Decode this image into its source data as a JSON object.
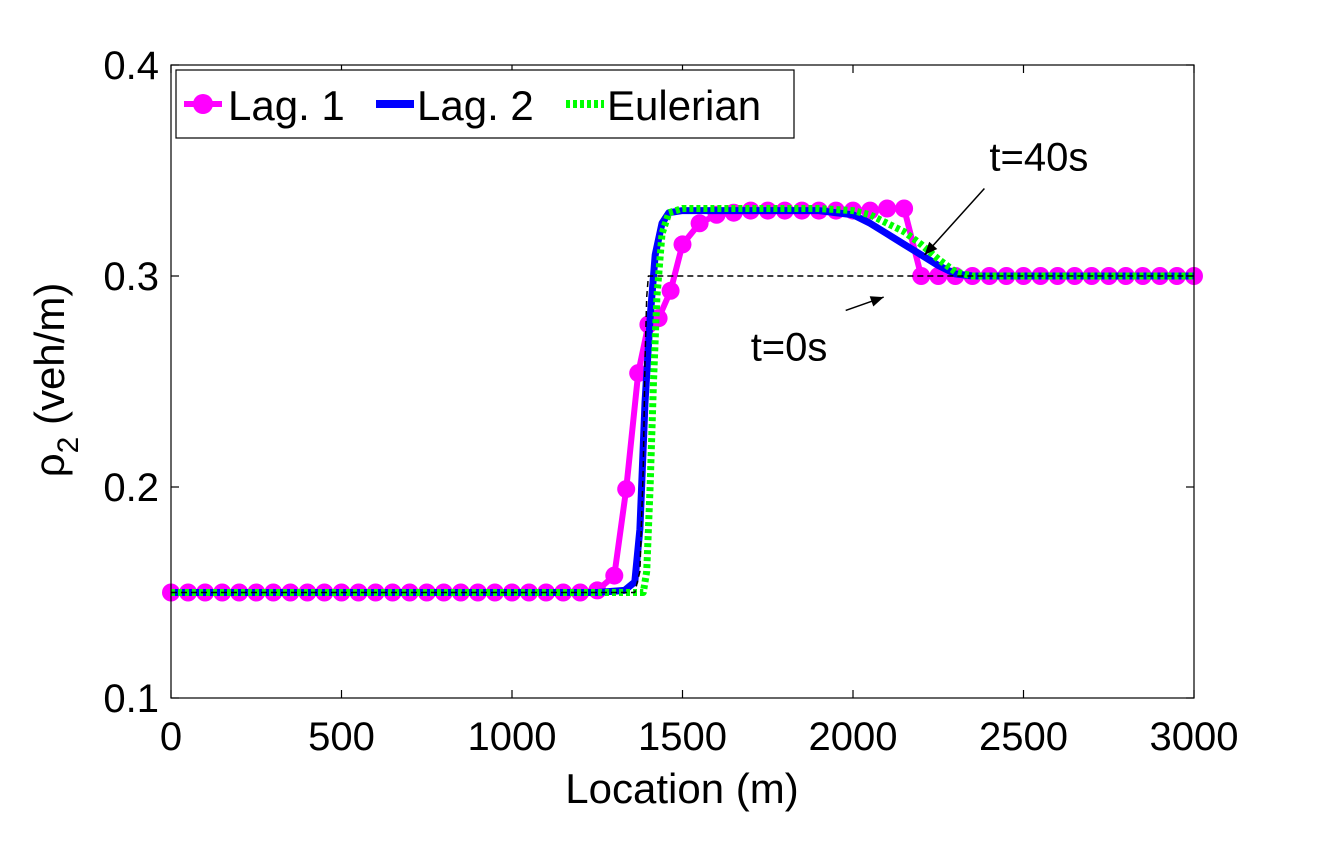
{
  "chart_data": {
    "type": "line",
    "title": "",
    "xlabel": "Location (m)",
    "ylabel": "ρ",
    "ylabel_sub": "2",
    "ylabel_unit": " (veh/m)",
    "xlim": [
      0,
      3000
    ],
    "ylim": [
      0.1,
      0.4
    ],
    "xticks": [
      0,
      500,
      1000,
      1500,
      2000,
      2500,
      3000
    ],
    "xtick_labels": [
      "0",
      "500",
      "1000",
      "1500",
      "2000",
      "2500",
      "3000"
    ],
    "yticks": [
      0.1,
      0.2,
      0.3,
      0.4
    ],
    "ytick_labels": [
      "0.1",
      "0.2",
      "0.3",
      "0.4"
    ],
    "grid": false,
    "legend_position": "top-left",
    "series": [
      {
        "name": "Lag. 1",
        "color": "#ff00ff",
        "style": "solid-circles",
        "x": [
          0,
          50,
          100,
          150,
          200,
          250,
          300,
          350,
          400,
          450,
          500,
          550,
          600,
          650,
          700,
          750,
          800,
          850,
          900,
          950,
          1000,
          1050,
          1100,
          1150,
          1200,
          1250,
          1300,
          1335,
          1370,
          1400,
          1430,
          1465,
          1500,
          1550,
          1600,
          1650,
          1700,
          1750,
          1800,
          1850,
          1900,
          1950,
          2000,
          2050,
          2100,
          2150,
          2200,
          2250,
          2300,
          2350,
          2400,
          2450,
          2500,
          2550,
          2600,
          2650,
          2700,
          2750,
          2800,
          2850,
          2900,
          2950,
          3000
        ],
        "y": [
          0.15,
          0.15,
          0.15,
          0.15,
          0.15,
          0.15,
          0.15,
          0.15,
          0.15,
          0.15,
          0.15,
          0.15,
          0.15,
          0.15,
          0.15,
          0.15,
          0.15,
          0.15,
          0.15,
          0.15,
          0.15,
          0.15,
          0.15,
          0.15,
          0.15,
          0.151,
          0.158,
          0.199,
          0.254,
          0.277,
          0.28,
          0.293,
          0.315,
          0.325,
          0.329,
          0.33,
          0.331,
          0.331,
          0.331,
          0.331,
          0.331,
          0.331,
          0.331,
          0.331,
          0.332,
          0.332,
          0.3,
          0.3,
          0.3,
          0.3,
          0.3,
          0.3,
          0.3,
          0.3,
          0.3,
          0.3,
          0.3,
          0.3,
          0.3,
          0.3,
          0.3,
          0.3,
          0.3
        ]
      },
      {
        "name": "Lag. 2",
        "color": "#0000ff",
        "style": "solid",
        "x": [
          0,
          1250,
          1330,
          1360,
          1375,
          1390,
          1405,
          1420,
          1440,
          1460,
          1500,
          1600,
          1900,
          2000,
          2050,
          2100,
          2150,
          2200,
          2250,
          2300,
          2350,
          2400,
          3000
        ],
        "y": [
          0.15,
          0.15,
          0.151,
          0.155,
          0.18,
          0.24,
          0.28,
          0.31,
          0.325,
          0.33,
          0.331,
          0.331,
          0.331,
          0.329,
          0.325,
          0.32,
          0.315,
          0.31,
          0.305,
          0.301,
          0.3,
          0.3,
          0.3
        ]
      },
      {
        "name": "Eulerian",
        "color": "#00ff00",
        "style": "dotted",
        "x": [
          0,
          1350,
          1385,
          1395,
          1405,
          1415,
          1425,
          1440,
          1460,
          1500,
          1600,
          1900,
          2000,
          2050,
          2100,
          2150,
          2200,
          2250,
          2300,
          2350,
          2400,
          3000
        ],
        "y": [
          0.15,
          0.15,
          0.15,
          0.16,
          0.2,
          0.25,
          0.29,
          0.32,
          0.33,
          0.332,
          0.332,
          0.332,
          0.331,
          0.329,
          0.325,
          0.321,
          0.315,
          0.308,
          0.302,
          0.3,
          0.3,
          0.3
        ]
      },
      {
        "name": "",
        "color": "#000000",
        "style": "dashed",
        "x": [
          0,
          1360,
          1375,
          1385,
          1390,
          1395,
          1400,
          1410,
          3000
        ],
        "y": [
          0.15,
          0.15,
          0.16,
          0.21,
          0.26,
          0.29,
          0.3,
          0.3,
          0.3
        ]
      }
    ],
    "annotations": [
      {
        "text": "t=40s",
        "x": 2400,
        "y": 0.35,
        "arrow_to": [
          2210,
          0.31
        ]
      },
      {
        "text": "t=0s",
        "x": 1700,
        "y": 0.26,
        "arrow_to": [
          2090,
          0.29
        ]
      }
    ]
  }
}
